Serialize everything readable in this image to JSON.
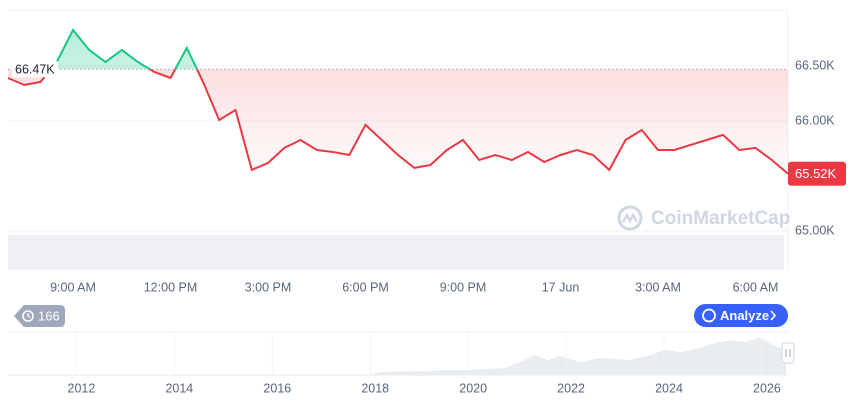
{
  "chart_data": {
    "type": "line",
    "values": [
      66391,
      66327,
      66355,
      66536,
      66827,
      66645,
      66536,
      66645,
      66536,
      66445,
      66391,
      66664,
      66355,
      66009,
      66100,
      65555,
      65618,
      65755,
      65827,
      65736,
      65718,
      65691,
      65964,
      65827,
      65691,
      65573,
      65600,
      65736,
      65827,
      65645,
      65691,
      65645,
      65718,
      65627,
      65691,
      65736,
      65691,
      65555,
      65827,
      65918,
      65736,
      65736,
      65782,
      65827,
      65873,
      65736,
      65755,
      65645,
      65520
    ],
    "xlim": [
      0,
      48
    ],
    "xticks": [
      {
        "value": 4,
        "label": "9:00 AM"
      },
      {
        "value": 10,
        "label": "12:00 PM"
      },
      {
        "value": 16,
        "label": "3:00 PM"
      },
      {
        "value": 22,
        "label": "6:00 PM"
      },
      {
        "value": 28,
        "label": "9:00 PM"
      },
      {
        "value": 34,
        "label": "17 Jun"
      },
      {
        "value": 40,
        "label": "3:00 AM"
      },
      {
        "value": 46,
        "label": "6:00 AM"
      }
    ],
    "ylim": [
      64645,
      67009
    ],
    "yticks": [
      {
        "value": 65000,
        "label": "65.00K"
      },
      {
        "value": 66000,
        "label": "66.00K"
      },
      {
        "value": 66500,
        "label": "66.50K"
      }
    ],
    "grid": true,
    "colors": {
      "up": "#16c784",
      "down": "#ea3943"
    },
    "reference": {
      "value": 66470,
      "label": "66.47K"
    },
    "last_price": {
      "value": 65520,
      "label": "65.52K"
    }
  },
  "navigator": {
    "xlim": [
      2010.5,
      2026.43
    ],
    "xticks": [
      2012,
      2014,
      2016,
      2018,
      2020,
      2022,
      2024,
      2026
    ]
  },
  "history_badge": "166",
  "analyze_button": "Analyze",
  "watermark": "CoinMarketCap"
}
